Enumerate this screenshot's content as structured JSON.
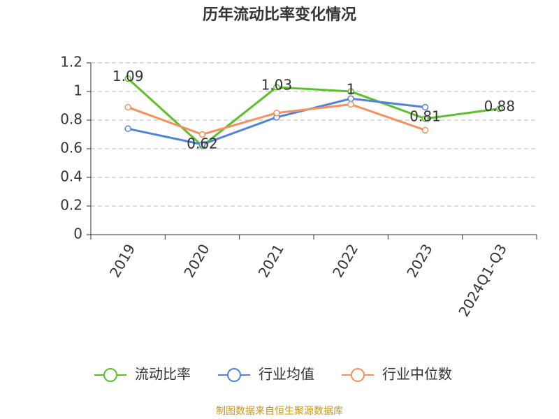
{
  "chart_data": {
    "type": "line",
    "title": "历年流动比率变化情况",
    "categories": [
      "2019",
      "2020",
      "2021",
      "2022",
      "2023",
      "2024Q1-Q3"
    ],
    "series": [
      {
        "name": "流动比率",
        "color": "#5cc02a",
        "values": [
          1.09,
          0.62,
          1.03,
          1,
          0.81,
          0.88
        ],
        "labels": true
      },
      {
        "name": "行业均值",
        "color": "#5283da",
        "values": [
          0.74,
          0.63,
          0.82,
          0.95,
          0.89,
          null
        ]
      },
      {
        "name": "行业中位数",
        "color": "#f5915f",
        "values": [
          0.89,
          0.7,
          0.85,
          0.91,
          0.73,
          null
        ]
      }
    ],
    "ylim": [
      0,
      1.2
    ],
    "yticks": [
      0,
      0.2,
      0.4,
      0.6,
      0.8,
      1,
      1.2
    ],
    "grid": true,
    "source": "制图数据来自恒生聚源数据库"
  }
}
